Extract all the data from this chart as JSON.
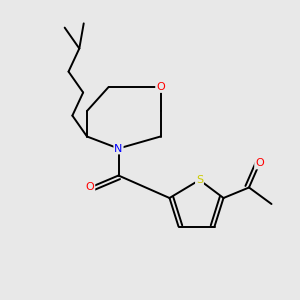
{
  "bg_color": "#e8e8e8",
  "atom_colors": {
    "O": "#ff0000",
    "N": "#0000ff",
    "S": "#cccc00",
    "C": "#000000"
  },
  "bond_color": "#000000",
  "font_size_atom": 8,
  "line_width": 1.4,
  "figsize": [
    3.0,
    3.0
  ],
  "dpi": 100,
  "xlim": [
    0,
    10
  ],
  "ylim": [
    0,
    10
  ]
}
